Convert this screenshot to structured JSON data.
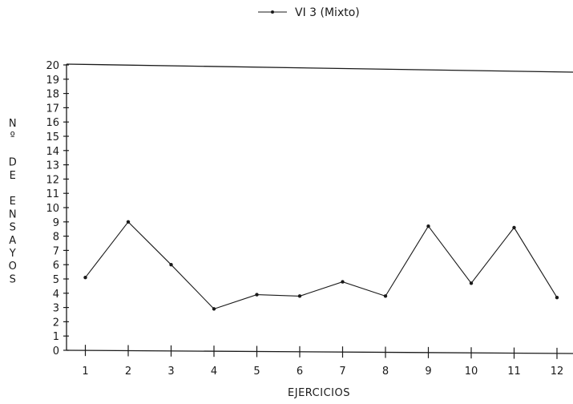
{
  "chart_data": {
    "type": "line",
    "title": "",
    "xlabel": "EJERCICIOS",
    "ylabel": "Nº DE ENSAYOS",
    "ylabel_glyphs": [
      "N",
      "º",
      "",
      "D",
      "E",
      "",
      "E",
      "N",
      "S",
      "A",
      "Y",
      "O",
      "S"
    ],
    "x": [
      1,
      2,
      3,
      4,
      5,
      6,
      7,
      8,
      9,
      10,
      11,
      12
    ],
    "xlim": [
      0,
      12.2
    ],
    "ylim": [
      0,
      20
    ],
    "yticks": [
      0,
      1,
      2,
      3,
      4,
      5,
      6,
      7,
      8,
      9,
      10,
      11,
      12,
      13,
      14,
      15,
      16,
      17,
      18,
      19,
      20
    ],
    "grid": false,
    "legend_position": "top-center",
    "series": [
      {
        "name": "VI 3 (Mixto)",
        "values": [
          5.1,
          9,
          6,
          2.9,
          3.9,
          3.8,
          4.8,
          3.8,
          8.7,
          4.7,
          8.6,
          3.7
        ],
        "color": "#1a1a1a"
      }
    ]
  }
}
